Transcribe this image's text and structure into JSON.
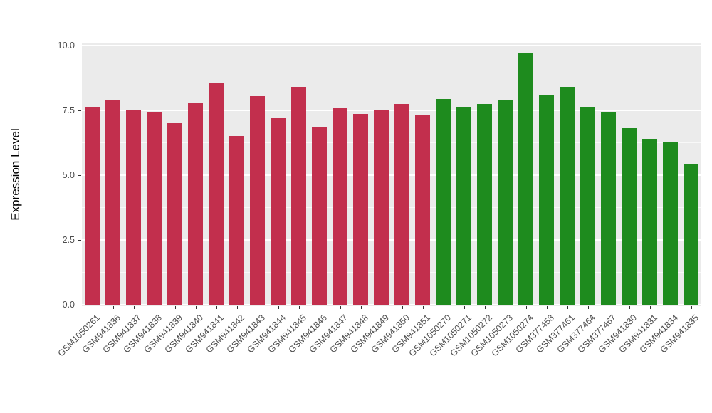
{
  "chart_data": {
    "type": "bar",
    "title": "",
    "xlabel": "",
    "ylabel": "Expression Level",
    "ylim": [
      0,
      10
    ],
    "grid": true,
    "legend_position": "none",
    "panel_background": "#EBEBEB",
    "grid_color": "#FFFFFF",
    "yticks": [
      {
        "value": 0,
        "label": "0.0"
      },
      {
        "value": 2.5,
        "label": "2.5"
      },
      {
        "value": 5,
        "label": "5.0"
      },
      {
        "value": 7.5,
        "label": "7.5"
      },
      {
        "value": 10,
        "label": "10.0"
      }
    ],
    "minor_ticks": [
      1.25,
      3.75,
      6.25,
      8.75
    ],
    "categories": [
      "GSM1050261",
      "GSM941836",
      "GSM941837",
      "GSM941838",
      "GSM941839",
      "GSM941840",
      "GSM941841",
      "GSM941842",
      "GSM941843",
      "GSM941844",
      "GSM941845",
      "GSM941846",
      "GSM941847",
      "GSM941848",
      "GSM941849",
      "GSM941850",
      "GSM941851",
      "GSM1050270",
      "GSM1050271",
      "GSM1050272",
      "GSM1050273",
      "GSM1050274",
      "GSM377458",
      "GSM377461",
      "GSM377464",
      "GSM377467",
      "GSM941830",
      "GSM941831",
      "GSM941834",
      "GSM941835"
    ],
    "values": [
      7.65,
      7.9,
      7.5,
      7.45,
      7.0,
      7.8,
      8.55,
      6.5,
      8.05,
      7.2,
      8.4,
      6.85,
      7.6,
      7.35,
      7.5,
      7.75,
      7.3,
      7.95,
      7.65,
      7.75,
      7.9,
      9.7,
      8.1,
      8.4,
      7.65,
      7.45,
      6.8,
      6.4,
      6.3,
      5.4
    ],
    "group_split_index": 17,
    "colors": {
      "group1": "#C22F4D",
      "group2": "#1E8B1E"
    }
  }
}
